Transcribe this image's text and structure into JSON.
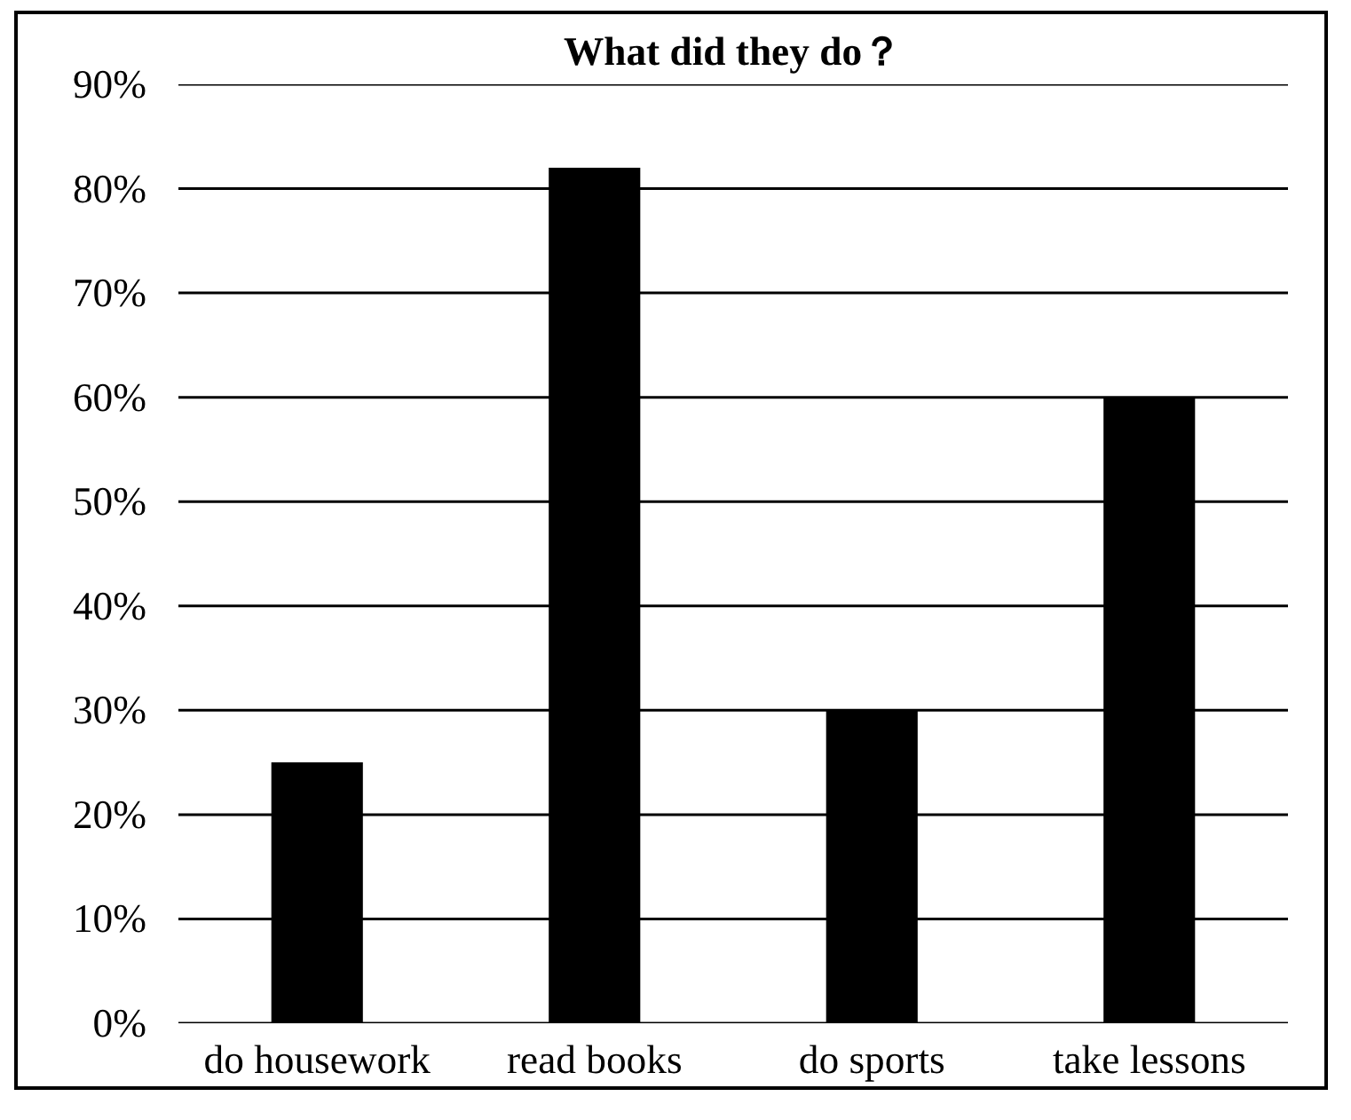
{
  "chart_data": {
    "type": "bar",
    "title": "What did they do？",
    "categories": [
      "do housework",
      "read books",
      "do sports",
      "take lessons"
    ],
    "values": [
      25,
      82,
      30,
      60
    ],
    "color": "#000000",
    "ylim": [
      0,
      90
    ],
    "yticks": [
      {
        "value": 0,
        "label": "0%"
      },
      {
        "value": 10,
        "label": "10%"
      },
      {
        "value": 20,
        "label": "20%"
      },
      {
        "value": 30,
        "label": "30%"
      },
      {
        "value": 40,
        "label": "40%"
      },
      {
        "value": 50,
        "label": "50%"
      },
      {
        "value": 60,
        "label": "60%"
      },
      {
        "value": 70,
        "label": "70%"
      },
      {
        "value": 80,
        "label": "80%"
      },
      {
        "value": 90,
        "label": "90%"
      }
    ],
    "grid": "y"
  }
}
